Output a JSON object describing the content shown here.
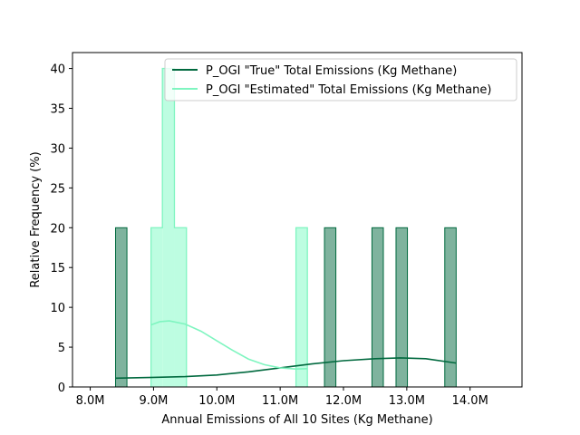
{
  "chart_data": {
    "type": "histogram",
    "title": "",
    "xlabel": "Annual Emissions of All 10 Sites (Kg Methane)",
    "ylabel": "Relative Frequency (%)",
    "xlim": [
      7.72,
      14.82
    ],
    "ylim": [
      0,
      42
    ],
    "x_ticks": [
      {
        "value": 8.0,
        "label": "8.0M"
      },
      {
        "value": 9.0,
        "label": "9.0M"
      },
      {
        "value": 10.0,
        "label": "10.0M"
      },
      {
        "value": 11.0,
        "label": "11.0M"
      },
      {
        "value": 12.0,
        "label": "12.0M"
      },
      {
        "value": 13.0,
        "label": "13.0M"
      },
      {
        "value": 14.0,
        "label": "14.0M"
      }
    ],
    "y_ticks": [
      {
        "value": 0,
        "label": "0"
      },
      {
        "value": 5,
        "label": "5"
      },
      {
        "value": 10,
        "label": "10"
      },
      {
        "value": 15,
        "label": "15"
      },
      {
        "value": 20,
        "label": "20"
      },
      {
        "value": 25,
        "label": "25"
      },
      {
        "value": 30,
        "label": "30"
      },
      {
        "value": 35,
        "label": "35"
      },
      {
        "value": 40,
        "label": "40"
      }
    ],
    "grid": false,
    "legend_position": "top-right",
    "series": [
      {
        "name": "P_OGI \"True\" Total Emissions (Kg Methane)",
        "color": "#00693e",
        "fill": "#7fb39e",
        "style": "bars",
        "bars": [
          {
            "x0": 8.4,
            "x1": 8.58,
            "value": 20
          },
          {
            "x0": 11.7,
            "x1": 11.88,
            "value": 20
          },
          {
            "x0": 12.45,
            "x1": 12.63,
            "value": 20
          },
          {
            "x0": 12.83,
            "x1": 13.01,
            "value": 20
          },
          {
            "x0": 13.6,
            "x1": 13.78,
            "value": 20
          }
        ],
        "kde": [
          [
            8.4,
            1.1
          ],
          [
            9.0,
            1.2
          ],
          [
            9.5,
            1.3
          ],
          [
            10.0,
            1.5
          ],
          [
            10.5,
            1.9
          ],
          [
            11.0,
            2.4
          ],
          [
            11.5,
            2.9
          ],
          [
            12.0,
            3.3
          ],
          [
            12.5,
            3.55
          ],
          [
            12.9,
            3.65
          ],
          [
            13.3,
            3.55
          ],
          [
            13.78,
            3.0
          ]
        ]
      },
      {
        "name": "P_OGI \"Estimated\" Total Emissions (Kg Methane)",
        "color": "#7ff5c0",
        "fill": "#bdfde1",
        "style": "step",
        "bars": [
          {
            "x0": 8.96,
            "x1": 9.14,
            "value": 20
          },
          {
            "x0": 9.14,
            "x1": 9.33,
            "value": 40
          },
          {
            "x0": 9.33,
            "x1": 9.52,
            "value": 20
          },
          {
            "x0": 11.25,
            "x1": 11.43,
            "value": 20
          }
        ],
        "kde": [
          [
            8.96,
            7.8
          ],
          [
            9.1,
            8.2
          ],
          [
            9.25,
            8.3
          ],
          [
            9.5,
            7.9
          ],
          [
            9.75,
            7.0
          ],
          [
            10.0,
            5.8
          ],
          [
            10.25,
            4.6
          ],
          [
            10.5,
            3.5
          ],
          [
            10.75,
            2.8
          ],
          [
            11.0,
            2.4
          ],
          [
            11.25,
            2.25
          ],
          [
            11.43,
            2.3
          ]
        ]
      }
    ]
  }
}
